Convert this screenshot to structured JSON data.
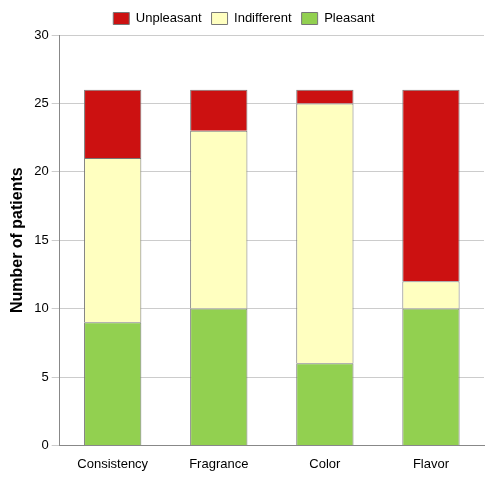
{
  "chart_data": {
    "type": "bar",
    "stacked": true,
    "y_label": "Number of patients",
    "categories": [
      "Consistency",
      "Fragrance",
      "Color",
      "Flavor"
    ],
    "series": [
      {
        "name": "Pleasant",
        "color": "#92d050",
        "values": [
          9,
          10,
          6,
          10
        ]
      },
      {
        "name": "Indifferent",
        "color": "#ffffc0",
        "values": [
          12,
          13,
          19,
          2
        ]
      },
      {
        "name": "Unpleasant",
        "color": "#cc1111",
        "values": [
          5,
          3,
          1,
          14
        ]
      }
    ],
    "ylim": [
      0,
      30
    ],
    "yticks": [
      0,
      5,
      10,
      15,
      20,
      25,
      30
    ],
    "grid": true,
    "legend": "top"
  }
}
